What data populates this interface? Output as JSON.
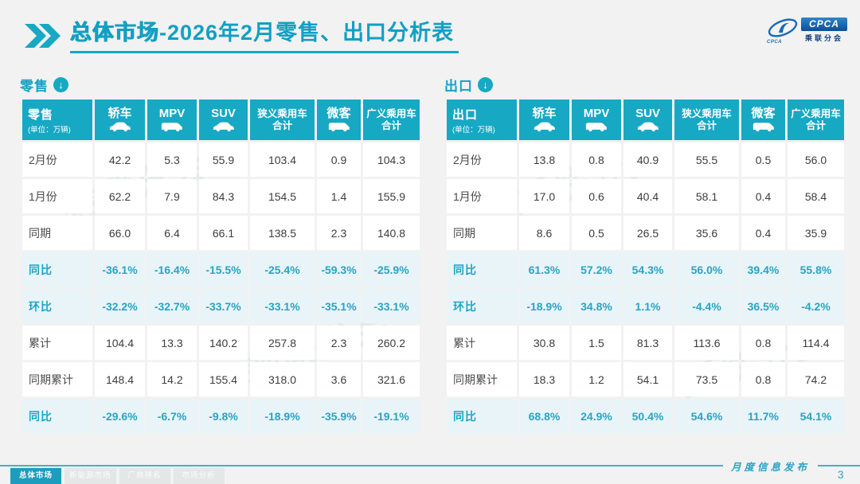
{
  "header": {
    "title_prefix": "总体市场",
    "title_suffix": "-2026年2月零售、出口分析表",
    "logo": {
      "box_text": "CPCA",
      "sub_text": "乘联分会",
      "swoosh_text": "CPCA"
    }
  },
  "unit_note": "(单位：万辆)",
  "columns": [
    {
      "label": "轿车",
      "label2": "",
      "icon": "sedan"
    },
    {
      "label": "MPV",
      "label2": "",
      "icon": "mpv"
    },
    {
      "label": "SUV",
      "label2": "",
      "icon": "suv"
    },
    {
      "label": "狭义乘用车",
      "label2": "合计",
      "icon": ""
    },
    {
      "label": "微客",
      "label2": "",
      "icon": "microvan"
    },
    {
      "label": "广义乘用车",
      "label2": "合计",
      "icon": ""
    }
  ],
  "tables": [
    {
      "name": "零售",
      "rows": [
        {
          "label": "2月份",
          "type": "num",
          "values": [
            "42.2",
            "5.3",
            "55.9",
            "103.4",
            "0.9",
            "104.3"
          ]
        },
        {
          "label": "1月份",
          "type": "num",
          "values": [
            "62.2",
            "7.9",
            "84.3",
            "154.5",
            "1.4",
            "155.9"
          ]
        },
        {
          "label": "同期",
          "type": "num",
          "values": [
            "66.0",
            "6.4",
            "66.1",
            "138.5",
            "2.3",
            "140.8"
          ]
        },
        {
          "label": "同比",
          "type": "pct",
          "values": [
            "-36.1%",
            "-16.4%",
            "-15.5%",
            "-25.4%",
            "-59.3%",
            "-25.9%"
          ]
        },
        {
          "label": "环比",
          "type": "pct",
          "values": [
            "-32.2%",
            "-32.7%",
            "-33.7%",
            "-33.1%",
            "-35.1%",
            "-33.1%"
          ]
        },
        {
          "label": "累计",
          "type": "num",
          "values": [
            "104.4",
            "13.3",
            "140.2",
            "257.8",
            "2.3",
            "260.2"
          ]
        },
        {
          "label": "同期累计",
          "type": "num",
          "values": [
            "148.4",
            "14.2",
            "155.4",
            "318.0",
            "3.6",
            "321.6"
          ]
        },
        {
          "label": "同比",
          "type": "pct",
          "values": [
            "-29.6%",
            "-6.7%",
            "-9.8%",
            "-18.9%",
            "-35.9%",
            "-19.1%"
          ]
        }
      ]
    },
    {
      "name": "出口",
      "rows": [
        {
          "label": "2月份",
          "type": "num",
          "values": [
            "13.8",
            "0.8",
            "40.9",
            "55.5",
            "0.5",
            "56.0"
          ]
        },
        {
          "label": "1月份",
          "type": "num",
          "values": [
            "17.0",
            "0.6",
            "40.4",
            "58.1",
            "0.4",
            "58.4"
          ]
        },
        {
          "label": "同期",
          "type": "num",
          "values": [
            "8.6",
            "0.5",
            "26.5",
            "35.6",
            "0.4",
            "35.9"
          ]
        },
        {
          "label": "同比",
          "type": "pct",
          "values": [
            "61.3%",
            "57.2%",
            "54.3%",
            "56.0%",
            "39.4%",
            "55.8%"
          ]
        },
        {
          "label": "环比",
          "type": "pct",
          "values": [
            "-18.9%",
            "34.8%",
            "1.1%",
            "-4.4%",
            "36.5%",
            "-4.2%"
          ]
        },
        {
          "label": "累计",
          "type": "num",
          "values": [
            "30.8",
            "1.5",
            "81.3",
            "113.6",
            "0.8",
            "114.4"
          ]
        },
        {
          "label": "同期累计",
          "type": "num",
          "values": [
            "18.3",
            "1.2",
            "54.1",
            "73.5",
            "0.8",
            "74.2"
          ]
        },
        {
          "label": "同比",
          "type": "pct",
          "values": [
            "68.8%",
            "24.9%",
            "50.4%",
            "54.6%",
            "11.7%",
            "54.1%"
          ]
        }
      ]
    }
  ],
  "footer": {
    "tabs": [
      {
        "label": "总体市场",
        "active": true
      },
      {
        "label": "新能源市场",
        "active": false
      },
      {
        "label": "厂商排名",
        "active": false
      },
      {
        "label": "市场分析",
        "active": false
      }
    ],
    "note": "月度信息发布",
    "page_number": "3"
  },
  "watermark_text": "乘联分会",
  "colors": {
    "accent": "#17a8c4",
    "pct_bg": "#e9f4f9",
    "pct_text": "#2aa3c4",
    "line": "#49b0c8"
  }
}
